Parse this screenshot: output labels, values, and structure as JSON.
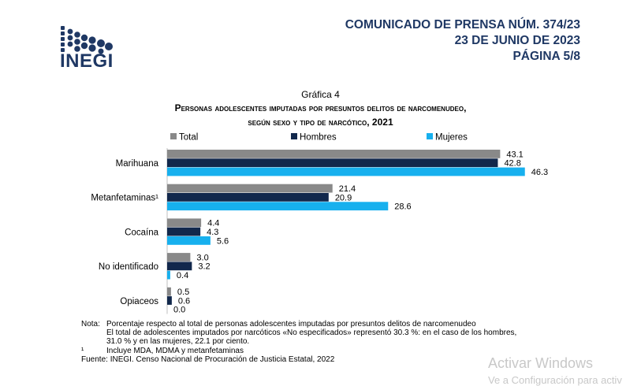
{
  "header": {
    "logo_text": "INEGI",
    "line1": "COMUNICADO DE PRENSA NÚM. 374/23",
    "line2": "23 DE JUNIO DE 2023",
    "line3": "PÁGINA 5/8"
  },
  "chart_data": {
    "type": "bar",
    "orientation": "horizontal",
    "label": "Gráfica 4",
    "title_line1": "Personas adolescentes imputadas por presuntos delitos de narcomenudeo,",
    "title_line2": "según sexo y tipo de narcótico, 2021",
    "categories": [
      "Marihuana",
      "Metanfetaminas¹",
      "Cocaína",
      "No identificado",
      "Opiaceos"
    ],
    "series": [
      {
        "name": "Total",
        "color": "#898989",
        "values": [
          43.1,
          21.4,
          4.4,
          3.0,
          0.5
        ],
        "labels": [
          "43.1",
          "21.4",
          "4.4",
          "3.0",
          "0.5"
        ]
      },
      {
        "name": "Hombres",
        "color": "#12284c",
        "values": [
          42.8,
          20.9,
          4.3,
          3.2,
          0.6
        ],
        "labels": [
          "42.8",
          "20.9",
          "4.3",
          "3.2",
          "0.6"
        ]
      },
      {
        "name": "Mujeres",
        "color": "#17b0ee",
        "values": [
          46.3,
          28.6,
          5.6,
          0.4,
          0.0
        ],
        "labels": [
          "46.3",
          "28.6",
          "5.6",
          "0.4",
          "0.0"
        ]
      }
    ],
    "legend_position": "top",
    "xlim": [
      0,
      50
    ],
    "grid": false
  },
  "notes": {
    "nota_label": "Nota:",
    "nota_line1": "Porcentaje respecto al total de personas adolescentes imputadas por presuntos delitos de narcomenudeo",
    "nota_line2": "El total de adolescentes imputados por narcóticos «No especificados» representó 30.3 %: en el caso de los hombres,",
    "nota_line3": "31.0 % y en las mujeres, 22.1 por ciento.",
    "footnote_mark": "¹",
    "footnote_text": "Incluye MDA, MDMA y metanfetaminas",
    "source": "Fuente: INEGI. Censo Nacional de Procuración de Justicia Estatal, 2022"
  },
  "watermark": {
    "line1": "Activar Windows",
    "line2": "Ve a Configuración para activ"
  }
}
